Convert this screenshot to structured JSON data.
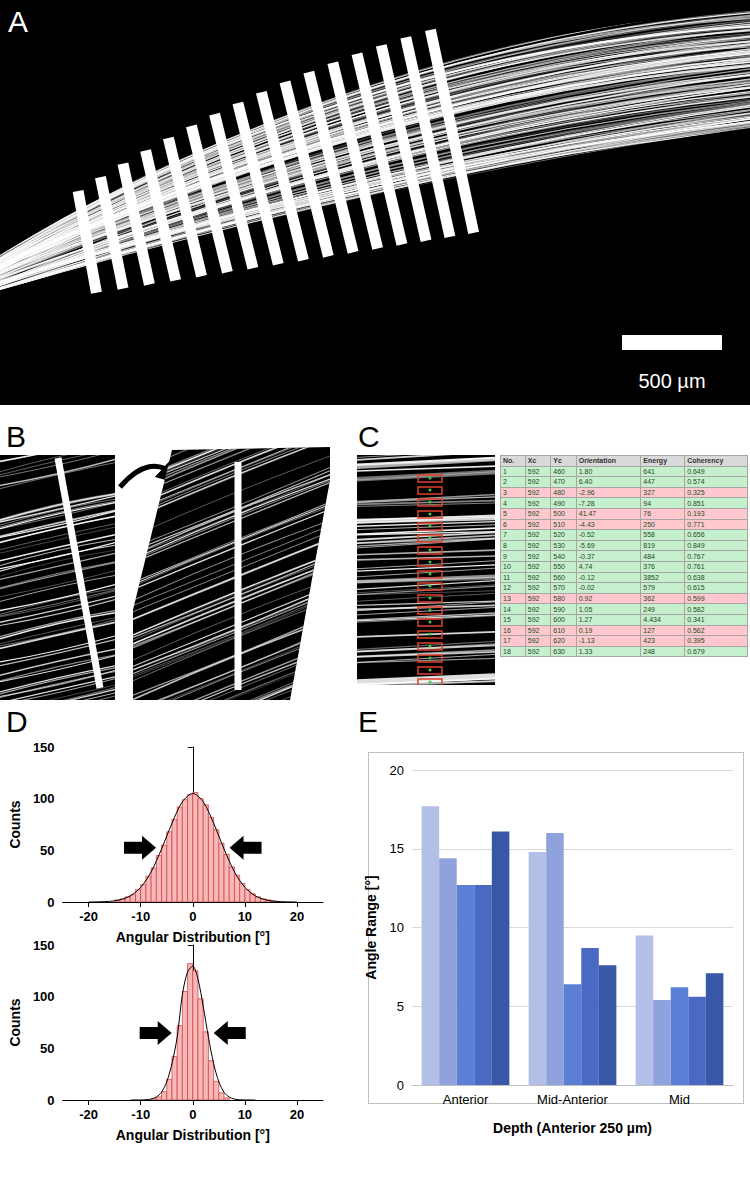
{
  "panels": {
    "A": {
      "label": "A",
      "scale_bar": "500 µm"
    },
    "B": {
      "label": "B"
    },
    "C": {
      "label": "C",
      "table": {
        "header": [
          "No.",
          "Xc",
          "Yc",
          "Orientation",
          "Energy",
          "Coherency"
        ],
        "rows": [
          {
            "cells": [
              "1",
              "592",
              "460",
              "1.80",
              "641",
              "0.649"
            ],
            "color": "#c6efce"
          },
          {
            "cells": [
              "2",
              "592",
              "470",
              "6.40",
              "447",
              "0.574"
            ],
            "color": "#c6efce"
          },
          {
            "cells": [
              "3",
              "592",
              "480",
              "-2.96",
              "327",
              "0.325"
            ],
            "color": "#ffc7ce"
          },
          {
            "cells": [
              "4",
              "592",
              "490",
              "-7.28",
              "94",
              "0.851"
            ],
            "color": "#c6efce"
          },
          {
            "cells": [
              "5",
              "592",
              "500",
              "41.47",
              "76",
              "0.193"
            ],
            "color": "#ffc7ce"
          },
          {
            "cells": [
              "6",
              "592",
              "510",
              "-4.43",
              "250",
              "0.771"
            ],
            "color": "#ffc7ce"
          },
          {
            "cells": [
              "7",
              "592",
              "520",
              "-0.52",
              "558",
              "0.656"
            ],
            "color": "#c6efce"
          },
          {
            "cells": [
              "8",
              "592",
              "530",
              "-5.69",
              "819",
              "0.849"
            ],
            "color": "#c6efce"
          },
          {
            "cells": [
              "9",
              "592",
              "540",
              "-0.37",
              "484",
              "0.767"
            ],
            "color": "#c6efce"
          },
          {
            "cells": [
              "10",
              "592",
              "550",
              "4.74",
              "376",
              "0.761"
            ],
            "color": "#c6efce"
          },
          {
            "cells": [
              "11",
              "592",
              "560",
              "-0.12",
              "3852",
              "0.638"
            ],
            "color": "#c6efce"
          },
          {
            "cells": [
              "12",
              "592",
              "570",
              "-0.02",
              "579",
              "0.615"
            ],
            "color": "#c6efce"
          },
          {
            "cells": [
              "13",
              "592",
              "580",
              "0.92",
              "362",
              "0.599"
            ],
            "color": "#ffc7ce"
          },
          {
            "cells": [
              "14",
              "592",
              "590",
              "1.05",
              "249",
              "0.582"
            ],
            "color": "#c6efce"
          },
          {
            "cells": [
              "15",
              "592",
              "600",
              "1.27",
              "4.434",
              "0.341"
            ],
            "color": "#c6efce"
          },
          {
            "cells": [
              "16",
              "592",
              "610",
              "0.19",
              "127",
              "0.562"
            ],
            "color": "#ffc7ce"
          },
          {
            "cells": [
              "17",
              "592",
              "620",
              "-1.13",
              "423",
              "0.395"
            ],
            "color": "#ffc7ce"
          },
          {
            "cells": [
              "18",
              "592",
              "630",
              "1.33",
              "248",
              "0.679"
            ],
            "color": "#c6efce"
          }
        ]
      }
    },
    "D": {
      "label": "D"
    },
    "E": {
      "label": "E"
    }
  },
  "chart_data": [
    {
      "type": "histogram",
      "xlabel": "Angular Distribution [°]",
      "ylabel": "Counts",
      "bins": [
        -15,
        -14,
        -13,
        -12,
        -11,
        -10,
        -9,
        -8,
        -7,
        -6,
        -5,
        -4,
        -3,
        -2,
        -1,
        0,
        1,
        2,
        3,
        4,
        5,
        6,
        7,
        8,
        9,
        10,
        11,
        12,
        13,
        14,
        15,
        16
      ],
      "values": [
        2,
        3,
        5,
        7,
        12,
        17,
        25,
        33,
        45,
        55,
        68,
        80,
        92,
        99,
        104,
        106,
        100,
        94,
        82,
        70,
        57,
        46,
        34,
        26,
        18,
        12,
        8,
        5,
        3,
        2,
        1
      ],
      "color": "#f6b8b8",
      "fit": {
        "x": [
          -20,
          -18,
          -16,
          -14,
          -12,
          -10,
          -8,
          -6,
          -4,
          -2,
          0,
          2,
          4,
          6,
          8,
          10,
          12,
          14,
          16,
          18,
          20
        ],
        "values": [
          0,
          0.2,
          0.6,
          2.1,
          5.9,
          14.2,
          29.1,
          51.3,
          76.2,
          97,
          105,
          97,
          76.2,
          51.3,
          29.1,
          14.2,
          5.9,
          2.1,
          0.6,
          0.2,
          0
        ],
        "color": "#000000"
      },
      "xlim": [
        -25,
        25
      ],
      "xticks": [
        -20,
        -10,
        0,
        10,
        20
      ],
      "ylim": [
        0,
        150
      ],
      "yticks": [
        0,
        50,
        100,
        150
      ]
    },
    {
      "type": "histogram",
      "xlabel": "Angular Distribution [°]",
      "ylabel": "Counts",
      "bins": [
        -8,
        -7,
        -6,
        -5,
        -4,
        -3,
        -2,
        -1,
        0,
        1,
        2,
        3,
        4,
        5,
        6,
        7
      ],
      "values": [
        1,
        3,
        8,
        20,
        42,
        72,
        105,
        132,
        125,
        98,
        66,
        38,
        18,
        7,
        2
      ],
      "color": "#f6b8b8",
      "fit": {
        "x": [
          -12,
          -10,
          -9,
          -8,
          -7,
          -6,
          -5,
          -4,
          -3,
          -2,
          -1,
          0,
          1,
          2,
          3,
          4,
          5,
          6,
          7,
          8,
          9,
          10,
          12
        ],
        "values": [
          0,
          0.1,
          0.25,
          0.9,
          2.8,
          7.5,
          17.6,
          35.2,
          60.8,
          102,
          124,
          129.6,
          116.8,
          90.7,
          60.8,
          35.2,
          17.6,
          7.5,
          2.8,
          0.9,
          0.25,
          0.1,
          0
        ],
        "color": "#000000"
      },
      "xlim": [
        -25,
        25
      ],
      "xticks": [
        -20,
        -10,
        0,
        10,
        20
      ],
      "ylim": [
        0,
        150
      ],
      "yticks": [
        0,
        50,
        100,
        150
      ]
    },
    {
      "type": "bar",
      "xlabel": "Depth (Anterior 250 µm)",
      "ylabel": "Angle Range [°]",
      "categories": [
        "Anterior",
        "Mid-Anterior",
        "Mid"
      ],
      "series": [
        {
          "color": "#b3bfe6",
          "values": [
            17.7,
            14.8,
            9.5
          ]
        },
        {
          "color": "#8fa2dc",
          "values": [
            14.4,
            16.0,
            5.4
          ]
        },
        {
          "color": "#5b7fd4",
          "values": [
            12.7,
            6.4,
            6.2
          ]
        },
        {
          "color": "#4a69c2",
          "values": [
            12.7,
            8.7,
            5.6
          ]
        },
        {
          "color": "#3857a6",
          "values": [
            16.1,
            7.6,
            7.1
          ]
        }
      ],
      "ylim": [
        0,
        20
      ],
      "yticks": [
        0,
        5,
        10,
        15,
        20
      ],
      "grid": true
    }
  ]
}
